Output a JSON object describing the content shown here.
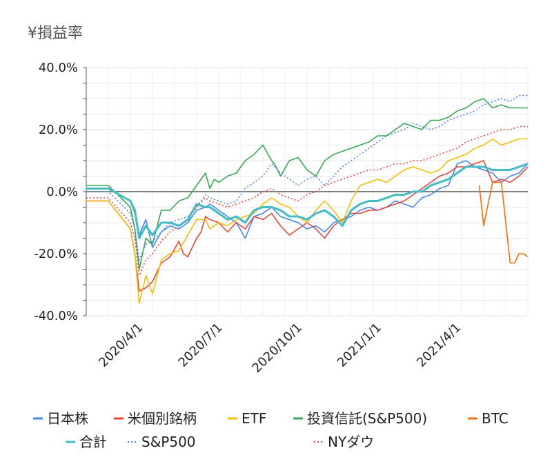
{
  "chart_data": {
    "type": "line",
    "title": "¥損益率",
    "ylim": [
      -40,
      40
    ],
    "y_ticks": [
      "40.0%",
      "20.0%",
      "0.0%",
      "-20.0%",
      "-40.0%"
    ],
    "y_tick_values": [
      40,
      20,
      0,
      -20,
      -40
    ],
    "x_ticks": [
      "2020/4/1",
      "2020/7/1",
      "2020/10/1",
      "2021/1/1",
      "2021/4/1"
    ],
    "x_tick_positions": [
      0.12,
      0.3,
      0.48,
      0.66,
      0.84
    ],
    "grid": true,
    "legend_position": "bottom",
    "series": [
      {
        "name": "日本株",
        "color": "#4285f4",
        "dash": false,
        "x": [
          0,
          0.05,
          0.1,
          0.11,
          0.12,
          0.135,
          0.15,
          0.17,
          0.19,
          0.21,
          0.23,
          0.25,
          0.27,
          0.28,
          0.3,
          0.32,
          0.34,
          0.36,
          0.38,
          0.4,
          0.42,
          0.44,
          0.46,
          0.48,
          0.5,
          0.52,
          0.54,
          0.56,
          0.58,
          0.6,
          0.62,
          0.64,
          0.66,
          0.68,
          0.7,
          0.72,
          0.74,
          0.76,
          0.78,
          0.8,
          0.82,
          0.84,
          0.86,
          0.88,
          0.9,
          0.92,
          0.94,
          0.96,
          0.98,
          1
        ],
        "y": [
          1,
          1,
          -3,
          -7,
          -14,
          -9,
          -18,
          -13,
          -11,
          -12,
          -10,
          -6,
          -5,
          -4,
          -6,
          -8,
          -10,
          -15,
          -8,
          -7,
          -5,
          -8,
          -9,
          -10,
          -12,
          -11,
          -13,
          -10,
          -9,
          -8,
          -6,
          -5,
          -6,
          -5,
          -3,
          -4,
          -5,
          -2,
          -1,
          1,
          2,
          9,
          10,
          8,
          7,
          6,
          3,
          5,
          6,
          9
        ]
      },
      {
        "name": "米個別銘柄",
        "color": "#ea4335",
        "dash": false,
        "x": [
          0,
          0.05,
          0.1,
          0.11,
          0.12,
          0.135,
          0.15,
          0.17,
          0.19,
          0.21,
          0.22,
          0.23,
          0.25,
          0.26,
          0.27,
          0.28,
          0.3,
          0.32,
          0.34,
          0.36,
          0.38,
          0.4,
          0.42,
          0.44,
          0.46,
          0.48,
          0.5,
          0.52,
          0.54,
          0.56,
          0.58,
          0.6,
          0.62,
          0.64,
          0.66,
          0.68,
          0.7,
          0.72,
          0.74,
          0.76,
          0.78,
          0.8,
          0.82,
          0.84,
          0.86,
          0.88,
          0.9,
          0.92,
          0.94,
          0.96,
          0.98,
          1
        ],
        "y": [
          -3,
          -3,
          -12,
          -20,
          -32,
          -31,
          -29,
          -23,
          -21,
          -16,
          -20,
          -21,
          -15,
          -13,
          -8,
          -9,
          -10,
          -13,
          -10,
          -12,
          -8,
          -9,
          -7,
          -11,
          -14,
          -12,
          -10,
          -12,
          -15,
          -11,
          -9,
          -7,
          -7,
          -6,
          -6,
          -5,
          -4,
          -3,
          -1,
          1,
          3,
          5,
          6,
          8,
          8,
          9,
          10,
          3,
          4,
          3,
          5,
          8
        ]
      },
      {
        "name": "ETF",
        "color": "#fbbc04",
        "dash": false,
        "x": [
          0,
          0.05,
          0.1,
          0.11,
          0.12,
          0.135,
          0.15,
          0.17,
          0.19,
          0.21,
          0.23,
          0.25,
          0.27,
          0.28,
          0.3,
          0.32,
          0.34,
          0.36,
          0.38,
          0.4,
          0.42,
          0.44,
          0.46,
          0.48,
          0.5,
          0.52,
          0.54,
          0.56,
          0.58,
          0.6,
          0.62,
          0.64,
          0.66,
          0.68,
          0.7,
          0.72,
          0.74,
          0.76,
          0.78,
          0.8,
          0.82,
          0.84,
          0.86,
          0.88,
          0.9,
          0.92,
          0.94,
          0.96,
          0.98,
          1
        ],
        "y": [
          -3,
          -3,
          -12,
          -20,
          -36,
          -27,
          -33,
          -22,
          -20,
          -19,
          -14,
          -9,
          -9,
          -12,
          -10,
          -11,
          -9,
          -8,
          -7,
          -4,
          -2,
          -4,
          -5,
          -8,
          -10,
          -6,
          -3,
          -6,
          -10,
          -3,
          2,
          3,
          4,
          3,
          5,
          7,
          8,
          7,
          6,
          7,
          10,
          11,
          12,
          14,
          15,
          17,
          15,
          16,
          17,
          17
        ]
      },
      {
        "name": "投資信託(S&P500)",
        "color": "#34a853",
        "dash": false,
        "x": [
          0,
          0.05,
          0.1,
          0.11,
          0.12,
          0.135,
          0.15,
          0.17,
          0.19,
          0.21,
          0.23,
          0.25,
          0.27,
          0.28,
          0.29,
          0.3,
          0.32,
          0.34,
          0.36,
          0.38,
          0.4,
          0.42,
          0.43,
          0.44,
          0.46,
          0.48,
          0.5,
          0.52,
          0.54,
          0.56,
          0.58,
          0.6,
          0.62,
          0.64,
          0.66,
          0.68,
          0.7,
          0.72,
          0.74,
          0.76,
          0.78,
          0.8,
          0.82,
          0.84,
          0.86,
          0.88,
          0.9,
          0.92,
          0.94,
          0.96,
          0.98,
          1
        ],
        "y": [
          2,
          2,
          -5,
          -12,
          -25,
          -15,
          -17,
          -6,
          -6,
          -3,
          -2,
          2,
          6,
          1,
          4,
          3,
          5,
          6,
          10,
          12,
          15,
          10,
          8,
          5,
          10,
          11,
          7,
          5,
          10,
          12,
          13,
          14,
          15,
          16,
          18,
          18,
          20,
          22,
          21,
          20,
          23,
          23,
          24,
          26,
          27,
          29,
          30,
          27,
          28,
          27,
          27,
          27
        ]
      },
      {
        "name": "BTC",
        "color": "#ff6d01",
        "dash": false,
        "x": [
          0.89,
          0.9,
          0.92,
          0.94,
          0.96,
          0.97,
          0.98,
          0.99,
          1
        ],
        "y": [
          2,
          -11,
          3,
          3,
          -23,
          -23,
          -20,
          -20,
          -21
        ]
      },
      {
        "name": "合計",
        "color": "#46bdc6",
        "dash": false,
        "x": [
          0,
          0.05,
          0.1,
          0.11,
          0.12,
          0.135,
          0.15,
          0.17,
          0.19,
          0.21,
          0.23,
          0.25,
          0.27,
          0.28,
          0.3,
          0.32,
          0.34,
          0.36,
          0.38,
          0.4,
          0.42,
          0.44,
          0.46,
          0.48,
          0.5,
          0.52,
          0.54,
          0.56,
          0.58,
          0.6,
          0.62,
          0.64,
          0.66,
          0.68,
          0.7,
          0.72,
          0.74,
          0.76,
          0.78,
          0.8,
          0.82,
          0.84,
          0.86,
          0.88,
          0.9,
          0.92,
          0.94,
          0.96,
          0.98,
          1
        ],
        "y": [
          1,
          1,
          -3,
          -6,
          -15,
          -11,
          -14,
          -10,
          -10,
          -11,
          -9,
          -4,
          -5,
          -5,
          -7,
          -9,
          -8,
          -10,
          -6,
          -5,
          -5,
          -6,
          -8,
          -8,
          -9,
          -7,
          -6,
          -8,
          -11,
          -6,
          -4,
          -3,
          -3,
          -2,
          -1,
          -1,
          0,
          0,
          2,
          3,
          4,
          6,
          8,
          8,
          8,
          7,
          7,
          7,
          8,
          9
        ]
      },
      {
        "name": "S&P500",
        "color": "#4285f4",
        "dash": true,
        "x": [
          0,
          0.05,
          0.1,
          0.11,
          0.12,
          0.135,
          0.15,
          0.17,
          0.19,
          0.21,
          0.23,
          0.25,
          0.27,
          0.28,
          0.3,
          0.32,
          0.34,
          0.36,
          0.38,
          0.4,
          0.42,
          0.44,
          0.46,
          0.48,
          0.5,
          0.52,
          0.54,
          0.56,
          0.58,
          0.6,
          0.62,
          0.64,
          0.66,
          0.68,
          0.7,
          0.72,
          0.74,
          0.76,
          0.78,
          0.8,
          0.82,
          0.84,
          0.86,
          0.88,
          0.9,
          0.92,
          0.94,
          0.96,
          0.98,
          1
        ],
        "y": [
          0,
          0,
          -7,
          -12,
          -22,
          -17,
          -16,
          -13,
          -10,
          -9,
          -8,
          -5,
          -1,
          -2,
          -3,
          -4,
          -3,
          1,
          3,
          5,
          9,
          6,
          4,
          2,
          4,
          5,
          2,
          5,
          8,
          10,
          12,
          14,
          16,
          18,
          19,
          20,
          22,
          21,
          20,
          21,
          23,
          24,
          25,
          26,
          28,
          29,
          30,
          29,
          31,
          31
        ]
      },
      {
        "name": "NYダウ",
        "color": "#ea4335",
        "dash": true,
        "x": [
          0,
          0.05,
          0.1,
          0.11,
          0.12,
          0.135,
          0.15,
          0.17,
          0.19,
          0.21,
          0.23,
          0.25,
          0.27,
          0.28,
          0.3,
          0.32,
          0.34,
          0.36,
          0.38,
          0.4,
          0.42,
          0.44,
          0.46,
          0.48,
          0.5,
          0.52,
          0.54,
          0.56,
          0.58,
          0.6,
          0.62,
          0.64,
          0.66,
          0.68,
          0.7,
          0.72,
          0.74,
          0.76,
          0.78,
          0.8,
          0.82,
          0.84,
          0.86,
          0.88,
          0.9,
          0.92,
          0.94,
          0.96,
          0.98,
          1
        ],
        "y": [
          -2,
          -2,
          -10,
          -15,
          -27,
          -22,
          -20,
          -16,
          -13,
          -11,
          -9,
          -5,
          -2,
          -3,
          -4,
          -5,
          -4,
          -3,
          -2,
          0,
          1,
          -1,
          -2,
          -3,
          -1,
          0,
          2,
          3,
          4,
          5,
          6,
          7,
          7,
          8,
          9,
          9,
          10,
          10,
          11,
          12,
          13,
          14,
          16,
          17,
          18,
          19,
          20,
          20,
          21,
          21
        ]
      }
    ]
  }
}
